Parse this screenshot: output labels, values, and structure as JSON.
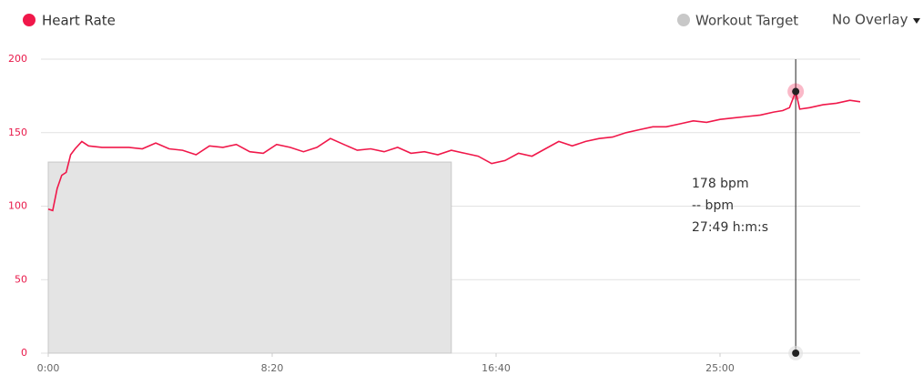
{
  "chart_data": {
    "type": "line",
    "series": [
      {
        "name": "Heart Rate",
        "color": "#f0184a",
        "values": [
          98,
          97,
          112,
          121,
          123,
          135,
          139,
          144,
          141,
          140,
          140,
          140,
          139,
          143,
          139,
          138,
          135,
          141,
          140,
          142,
          137,
          136,
          142,
          140,
          137,
          140,
          146,
          142,
          138,
          139,
          137,
          140,
          136,
          137,
          135,
          138,
          136,
          134,
          129,
          131,
          136,
          134,
          139,
          144,
          141,
          144,
          146,
          147,
          150,
          152,
          154,
          154,
          156,
          158,
          157,
          159,
          160,
          161,
          162,
          164,
          165,
          167,
          178,
          166,
          167,
          169,
          170,
          172,
          171
        ]
      }
    ],
    "x": [
      0,
      10,
      20,
      30,
      40,
      50,
      60,
      75,
      90,
      120,
      150,
      180,
      210,
      240,
      270,
      300,
      330,
      360,
      390,
      420,
      450,
      480,
      510,
      540,
      570,
      600,
      630,
      660,
      690,
      720,
      750,
      780,
      810,
      840,
      870,
      900,
      930,
      960,
      990,
      1020,
      1050,
      1080,
      1110,
      1140,
      1170,
      1200,
      1230,
      1260,
      1290,
      1320,
      1350,
      1380,
      1410,
      1440,
      1470,
      1500,
      1530,
      1560,
      1590,
      1620,
      1640,
      1655,
      1669,
      1678,
      1700,
      1730,
      1760,
      1790,
      1813
    ],
    "target": {
      "name": "Workout Target",
      "color": "#c8c8c8",
      "start": 0,
      "end": 900,
      "value": 130
    },
    "overlay": "No Overlay",
    "tooltip": {
      "x": 1669,
      "value": 178,
      "lines": [
        "178 bpm",
        "-- bpm",
        "27:49 h:m:s"
      ]
    },
    "xlim": [
      0,
      1813
    ],
    "xticks": [
      {
        "value": 0,
        "label": "0:00"
      },
      {
        "value": 500,
        "label": "8:20"
      },
      {
        "value": 1000,
        "label": "16:40"
      },
      {
        "value": 1500,
        "label": "25:00"
      }
    ],
    "ylim": [
      0,
      200
    ],
    "yticks": [
      0,
      50,
      100,
      150,
      200
    ],
    "grid": true
  }
}
